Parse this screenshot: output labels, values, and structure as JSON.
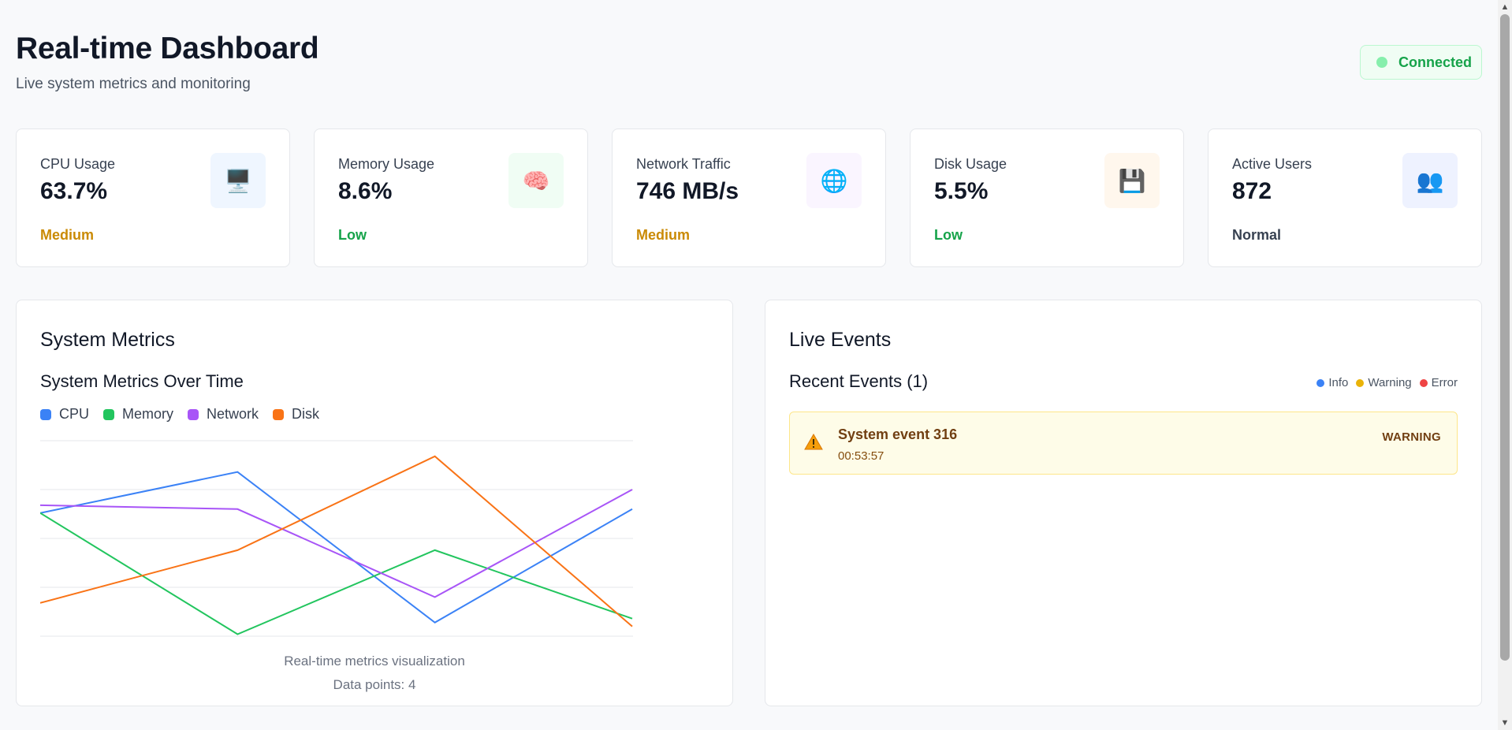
{
  "header": {
    "title": "Real-time Dashboard",
    "subtitle": "Live system metrics and monitoring",
    "connection": {
      "label": "Connected",
      "dot_color": "#86efac"
    }
  },
  "cards": [
    {
      "label": "CPU Usage",
      "value": "63.7%",
      "status": "Medium",
      "status_color": "#ca8a04",
      "icon": "desktop-computer-icon",
      "icon_glyph": "🖥️",
      "icon_bg": "#eff6ff"
    },
    {
      "label": "Memory Usage",
      "value": "8.6%",
      "status": "Low",
      "status_color": "#16a34a",
      "icon": "brain-icon",
      "icon_glyph": "🧠",
      "icon_bg": "#f0fdf4"
    },
    {
      "label": "Network Traffic",
      "value": "746 MB/s",
      "status": "Medium",
      "status_color": "#ca8a04",
      "icon": "globe-icon",
      "icon_glyph": "🌐",
      "icon_bg": "#faf5ff"
    },
    {
      "label": "Disk Usage",
      "value": "5.5%",
      "status": "Low",
      "status_color": "#16a34a",
      "icon": "floppy-disk-icon",
      "icon_glyph": "💾",
      "icon_bg": "#fff7ed"
    },
    {
      "label": "Active Users",
      "value": "872",
      "status": "Normal",
      "status_color": "#374151",
      "icon": "users-icon",
      "icon_glyph": "👥",
      "icon_bg": "#eef2ff"
    }
  ],
  "metrics_panel": {
    "title": "System Metrics",
    "subtitle": "System Metrics Over Time",
    "caption": "Real-time metrics visualization",
    "points_label": "Data points: 4"
  },
  "chart_data": {
    "type": "line",
    "x": [
      1,
      2,
      3,
      4
    ],
    "ylim": [
      0,
      100
    ],
    "grid": true,
    "legend": "top-left",
    "series": [
      {
        "name": "CPU",
        "color": "#3b82f6",
        "values": [
          63,
          84,
          7,
          65
        ]
      },
      {
        "name": "Memory",
        "color": "#22c55e",
        "values": [
          63,
          1,
          44,
          9
        ]
      },
      {
        "name": "Network",
        "color": "#a855f7",
        "values": [
          67,
          65,
          20,
          75
        ]
      },
      {
        "name": "Disk",
        "color": "#f97316",
        "values": [
          17,
          44,
          92,
          5
        ]
      }
    ]
  },
  "events_panel": {
    "title": "Live Events",
    "subtitle": "Recent Events (1)",
    "legend": [
      {
        "label": "Info",
        "color": "#3b82f6"
      },
      {
        "label": "Warning",
        "color": "#eab308"
      },
      {
        "label": "Error",
        "color": "#ef4444"
      }
    ],
    "events": [
      {
        "name": "System event 316",
        "time": "00:53:57",
        "level": "WARNING",
        "icon": "warning-icon"
      }
    ]
  }
}
